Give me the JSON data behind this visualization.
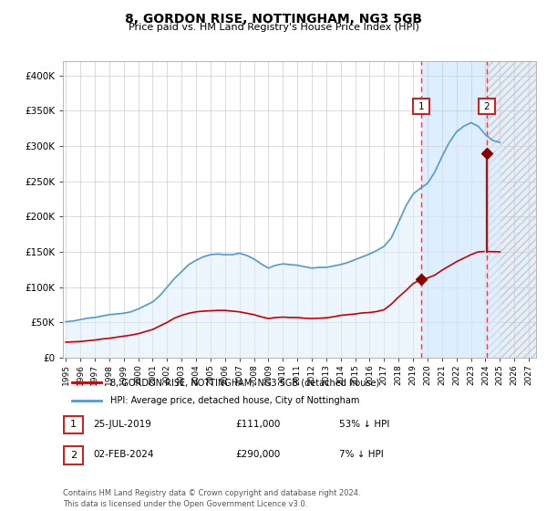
{
  "title": "8, GORDON RISE, NOTTINGHAM, NG3 5GB",
  "subtitle": "Price paid vs. HM Land Registry's House Price Index (HPI)",
  "footer": "Contains HM Land Registry data © Crown copyright and database right 2024.\nThis data is licensed under the Open Government Licence v3.0.",
  "legend_line1": "8, GORDON RISE, NOTTINGHAM, NG3 5GB (detached house)",
  "legend_line2": "HPI: Average price, detached house, City of Nottingham",
  "annotation1": {
    "label": "1",
    "date_str": "25-JUL-2019",
    "price": "£111,000",
    "hpi_text": "53% ↓ HPI"
  },
  "annotation2": {
    "label": "2",
    "date_str": "02-FEB-2024",
    "price": "£290,000",
    "hpi_text": "7% ↓ HPI"
  },
  "hpi_color": "#5599cc",
  "sold_color": "#cc0000",
  "point_color": "#880000",
  "background_color": "#ffffff",
  "plot_bg_color": "#ffffff",
  "shaded_region_color": "#ddeeff",
  "ylim": [
    0,
    420000
  ],
  "yticks": [
    0,
    50000,
    100000,
    150000,
    200000,
    250000,
    300000,
    350000,
    400000
  ],
  "sale1_year": 2019.57,
  "sale1_value": 111000,
  "sale2_year": 2024.09,
  "sale2_value": 290000,
  "xmin": 1994.8,
  "xmax": 2027.5,
  "shade_start": 2019.57,
  "shade_end": 2024.09,
  "hatch_start": 2024.09,
  "hatch_end": 2027.5,
  "hpi_data": [
    [
      1995.0,
      51000
    ],
    [
      1995.5,
      52000
    ],
    [
      1996.0,
      54000
    ],
    [
      1996.5,
      56000
    ],
    [
      1997.0,
      57000
    ],
    [
      1997.5,
      59000
    ],
    [
      1998.0,
      61000
    ],
    [
      1998.5,
      62000
    ],
    [
      1999.0,
      63000
    ],
    [
      1999.5,
      65000
    ],
    [
      2000.0,
      69000
    ],
    [
      2000.5,
      74000
    ],
    [
      2001.0,
      79000
    ],
    [
      2001.5,
      88000
    ],
    [
      2002.0,
      100000
    ],
    [
      2002.5,
      112000
    ],
    [
      2003.0,
      122000
    ],
    [
      2003.5,
      132000
    ],
    [
      2004.0,
      138000
    ],
    [
      2004.5,
      143000
    ],
    [
      2005.0,
      146000
    ],
    [
      2005.5,
      147000
    ],
    [
      2006.0,
      146000
    ],
    [
      2006.5,
      146000
    ],
    [
      2007.0,
      148000
    ],
    [
      2007.5,
      145000
    ],
    [
      2008.0,
      140000
    ],
    [
      2008.5,
      133000
    ],
    [
      2009.0,
      127000
    ],
    [
      2009.5,
      131000
    ],
    [
      2010.0,
      133000
    ],
    [
      2010.5,
      132000
    ],
    [
      2011.0,
      131000
    ],
    [
      2011.5,
      129000
    ],
    [
      2012.0,
      127000
    ],
    [
      2012.5,
      128000
    ],
    [
      2013.0,
      128000
    ],
    [
      2013.5,
      130000
    ],
    [
      2014.0,
      132000
    ],
    [
      2014.5,
      135000
    ],
    [
      2015.0,
      139000
    ],
    [
      2015.5,
      143000
    ],
    [
      2016.0,
      147000
    ],
    [
      2016.5,
      152000
    ],
    [
      2017.0,
      158000
    ],
    [
      2017.5,
      170000
    ],
    [
      2018.0,
      192000
    ],
    [
      2018.5,
      215000
    ],
    [
      2019.0,
      232000
    ],
    [
      2019.5,
      240000
    ],
    [
      2020.0,
      247000
    ],
    [
      2020.5,
      263000
    ],
    [
      2021.0,
      285000
    ],
    [
      2021.5,
      305000
    ],
    [
      2022.0,
      320000
    ],
    [
      2022.5,
      328000
    ],
    [
      2023.0,
      333000
    ],
    [
      2023.5,
      328000
    ],
    [
      2024.0,
      316000
    ],
    [
      2024.5,
      308000
    ],
    [
      2025.0,
      305000
    ]
  ],
  "sold_data_pre": [
    [
      1995.0,
      22000
    ],
    [
      1995.5,
      22500
    ],
    [
      1996.0,
      23000
    ],
    [
      1996.5,
      24000
    ],
    [
      1997.0,
      25000
    ],
    [
      1997.5,
      26500
    ],
    [
      1998.0,
      27500
    ],
    [
      1998.5,
      29000
    ],
    [
      1999.0,
      30500
    ],
    [
      1999.5,
      32000
    ],
    [
      2000.0,
      34000
    ],
    [
      2000.5,
      37000
    ],
    [
      2001.0,
      40000
    ],
    [
      2001.5,
      45000
    ],
    [
      2002.0,
      50000
    ],
    [
      2002.5,
      56000
    ],
    [
      2003.0,
      60000
    ],
    [
      2003.5,
      63000
    ],
    [
      2004.0,
      65000
    ],
    [
      2004.5,
      66000
    ],
    [
      2005.0,
      66500
    ],
    [
      2005.5,
      67000
    ],
    [
      2006.0,
      67000
    ],
    [
      2006.5,
      66000
    ],
    [
      2007.0,
      65000
    ],
    [
      2007.5,
      63000
    ],
    [
      2008.0,
      61000
    ],
    [
      2008.5,
      58000
    ],
    [
      2009.0,
      55500
    ],
    [
      2009.5,
      57000
    ],
    [
      2010.0,
      57500
    ],
    [
      2010.5,
      57000
    ],
    [
      2011.0,
      57000
    ],
    [
      2011.5,
      56000
    ],
    [
      2012.0,
      55500
    ],
    [
      2012.5,
      56000
    ],
    [
      2013.0,
      56500
    ],
    [
      2013.5,
      58000
    ],
    [
      2014.0,
      60000
    ],
    [
      2014.5,
      61000
    ],
    [
      2015.0,
      62000
    ],
    [
      2015.5,
      63500
    ],
    [
      2016.0,
      64000
    ],
    [
      2016.5,
      65500
    ],
    [
      2017.0,
      68000
    ],
    [
      2017.5,
      76000
    ],
    [
      2018.0,
      86000
    ],
    [
      2018.5,
      95000
    ],
    [
      2019.0,
      105000
    ],
    [
      2019.57,
      111000
    ]
  ],
  "sold_data_post": [
    [
      2019.57,
      111000
    ],
    [
      2020.0,
      113000
    ],
    [
      2020.5,
      117000
    ],
    [
      2021.0,
      124000
    ],
    [
      2021.5,
      130000
    ],
    [
      2022.0,
      136000
    ],
    [
      2022.5,
      141000
    ],
    [
      2023.0,
      146000
    ],
    [
      2023.5,
      150000
    ],
    [
      2023.9,
      150500
    ]
  ],
  "sold_data_after2": [
    [
      2024.09,
      290000
    ],
    [
      2024.5,
      150000
    ],
    [
      2025.0,
      150000
    ]
  ]
}
